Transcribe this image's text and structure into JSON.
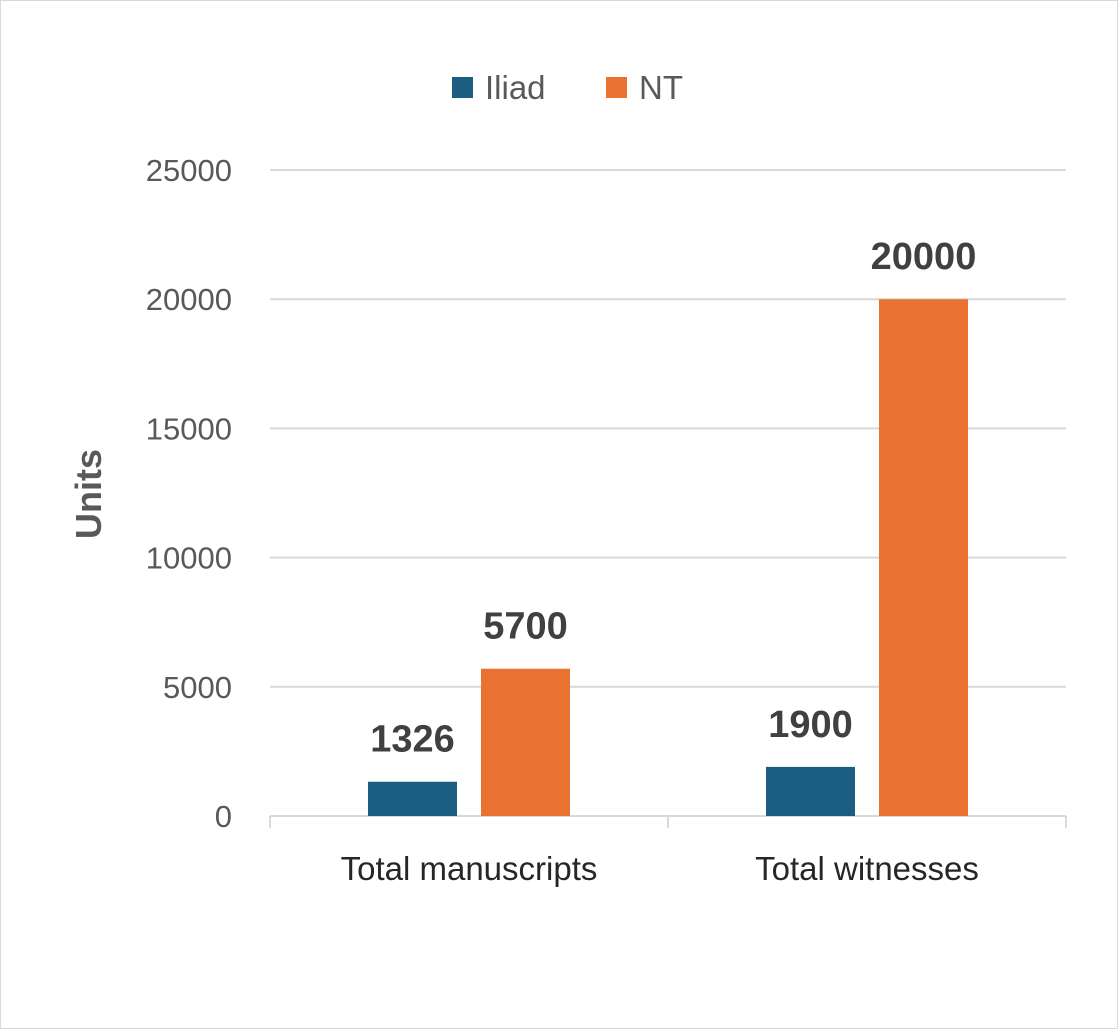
{
  "chart_data": {
    "type": "bar",
    "categories": [
      "Total manuscripts",
      "Total witnesses"
    ],
    "series": [
      {
        "name": "Iliad",
        "values": [
          1326,
          1900
        ],
        "color": "#1b5e82"
      },
      {
        "name": "NT",
        "values": [
          5700,
          20000
        ],
        "color": "#e97132"
      }
    ],
    "ylabel": "Units",
    "xlabel": "",
    "ylim": [
      0,
      25000
    ],
    "yticks": [
      0,
      5000,
      10000,
      15000,
      20000,
      25000
    ],
    "grid": true,
    "legend_position": "top",
    "data_labels": true
  }
}
